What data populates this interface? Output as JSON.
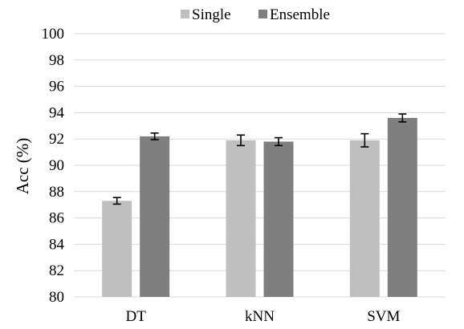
{
  "chart_data": {
    "type": "bar",
    "categories": [
      "DT",
      "kNN",
      "SVM"
    ],
    "series": [
      {
        "name": "Single",
        "color": "#bfbfbf",
        "values": [
          87.3,
          91.9,
          91.9
        ],
        "errors": [
          0.25,
          0.4,
          0.5
        ]
      },
      {
        "name": "Ensemble",
        "color": "#7f7f7f",
        "values": [
          92.2,
          91.8,
          93.6
        ],
        "errors": [
          0.25,
          0.3,
          0.3
        ]
      }
    ],
    "title": "",
    "xlabel": "",
    "ylabel": "Acc (%)",
    "ylim": [
      80,
      100
    ],
    "yticks": [
      80,
      82,
      84,
      86,
      88,
      90,
      92,
      94,
      96,
      98,
      100
    ],
    "grid": true,
    "legend_position": "top-center"
  }
}
